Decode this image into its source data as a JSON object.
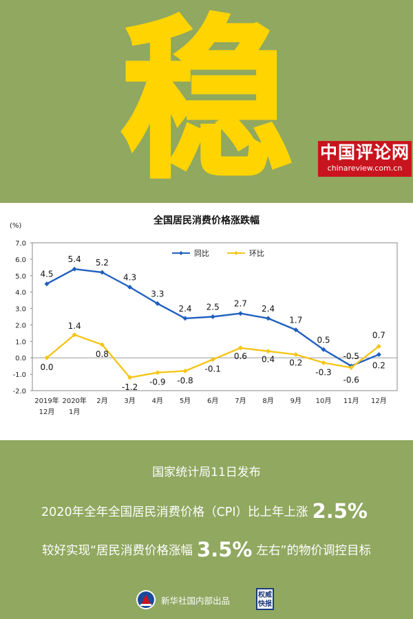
{
  "hero": {
    "character": "稳"
  },
  "chart_data": {
    "type": "line",
    "title": "全国居民消费价格涨跌幅",
    "ylabel": "(%)",
    "ylim": [
      -2.0,
      7.0
    ],
    "yticks": [
      "7.0",
      "6.0",
      "5.0",
      "4.0",
      "3.0",
      "2.0",
      "1.0",
      "0.0",
      "-1.0",
      "-2.0"
    ],
    "categories": [
      "2019年\n12月",
      "2020年\n1月",
      "2月",
      "3月",
      "4月",
      "5月",
      "6月",
      "7月",
      "8月",
      "9月",
      "10月",
      "11月",
      "12月"
    ],
    "legend_position": "top-center",
    "series": [
      {
        "name": "同比",
        "color": "#1f5fbf",
        "values": [
          4.5,
          5.4,
          5.2,
          4.3,
          3.3,
          2.4,
          2.5,
          2.7,
          2.4,
          1.7,
          0.5,
          -0.5,
          0.2
        ]
      },
      {
        "name": "环比",
        "color": "#f5c518",
        "values": [
          0.0,
          1.4,
          0.8,
          -1.2,
          -0.9,
          -0.8,
          -0.1,
          0.6,
          0.4,
          0.2,
          -0.3,
          -0.6,
          0.7
        ]
      }
    ],
    "data_labels": {
      "同比": [
        "4.5",
        "5.4",
        "5.2",
        "4.3",
        "3.3",
        "2.4",
        "2.5",
        "2.7",
        "2.4",
        "1.7",
        "0.5",
        "-0.5",
        "0.2"
      ],
      "环比": [
        "0.0",
        "1.4",
        "0.8",
        "-1.2",
        "-0.9",
        "-0.8",
        "-0.1",
        "0.6",
        "0.4",
        "0.2",
        "-0.3",
        "-0.6",
        "0.7"
      ]
    }
  },
  "info": {
    "line1": "国家统计局11日发布",
    "line2_pre": "2020年全年全国居民消费价格（CPI）比上年上涨",
    "line2_value": "2.5%",
    "line3_pre": "较好实现“居民消费价格涨幅",
    "line3_value": "3.5%",
    "line3_post": "左右”的物价调控目标"
  },
  "footer": {
    "credit": "新华社国内部出品",
    "seal_text": "权威快报"
  },
  "watermark": {
    "name_cn": "中国评论网",
    "url": "chinareview.com.cn"
  }
}
